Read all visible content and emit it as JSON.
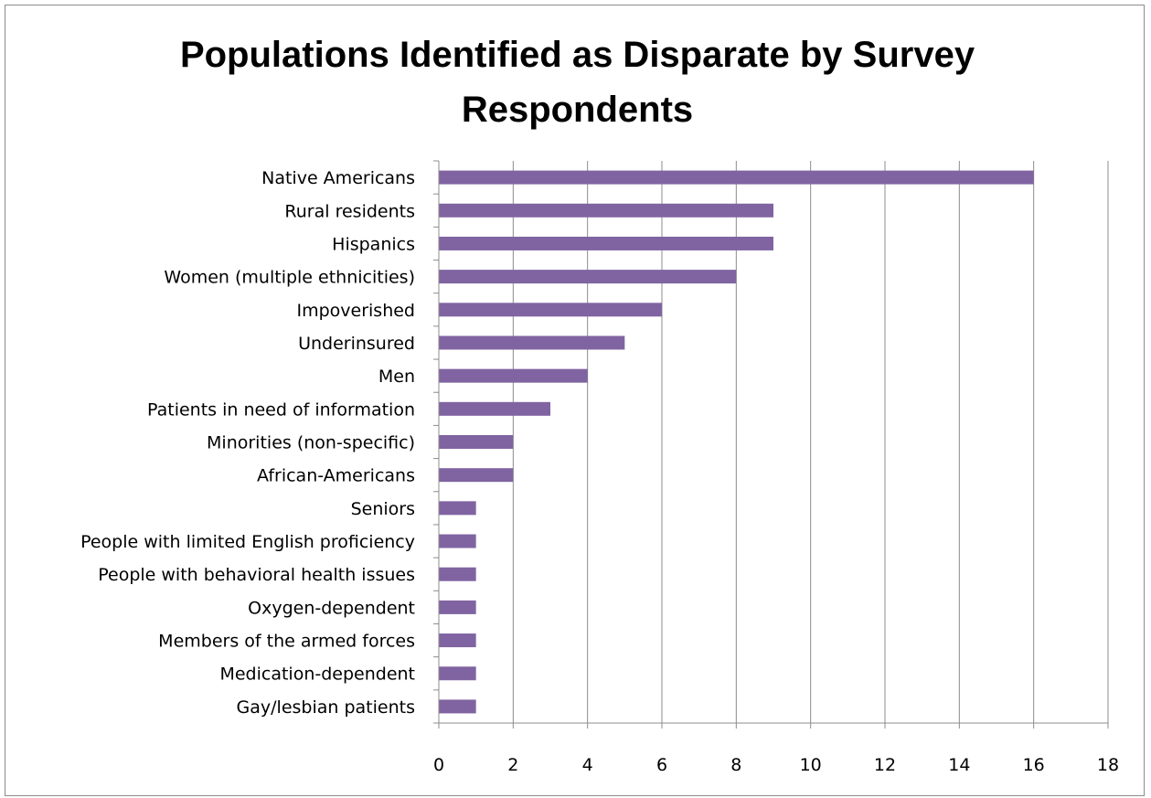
{
  "chart_data": {
    "type": "bar",
    "orientation": "horizontal",
    "title": "Populations Identified as Disparate by Survey Respondents",
    "categories": [
      "Native Americans",
      "Rural residents",
      "Hispanics",
      "Women (multiple ethnicities)",
      "Impoverished",
      "Underinsured",
      "Men",
      "Patients in need of information",
      "Minorities (non-specific)",
      "African-Americans",
      "Seniors",
      "People with limited English proficiency",
      "People with behavioral health issues",
      "Oxygen-dependent",
      "Members of the armed forces",
      "Medication-dependent",
      "Gay/lesbian patients"
    ],
    "values": [
      16,
      9,
      9,
      8,
      6,
      5,
      4,
      3,
      2,
      2,
      1,
      1,
      1,
      1,
      1,
      1,
      1
    ],
    "xlim": [
      0,
      18
    ],
    "xticks": [
      0,
      2,
      4,
      6,
      8,
      10,
      12,
      14,
      16,
      18
    ],
    "grid": "vertical",
    "legend": "none",
    "bar_color": "#8064a2"
  }
}
